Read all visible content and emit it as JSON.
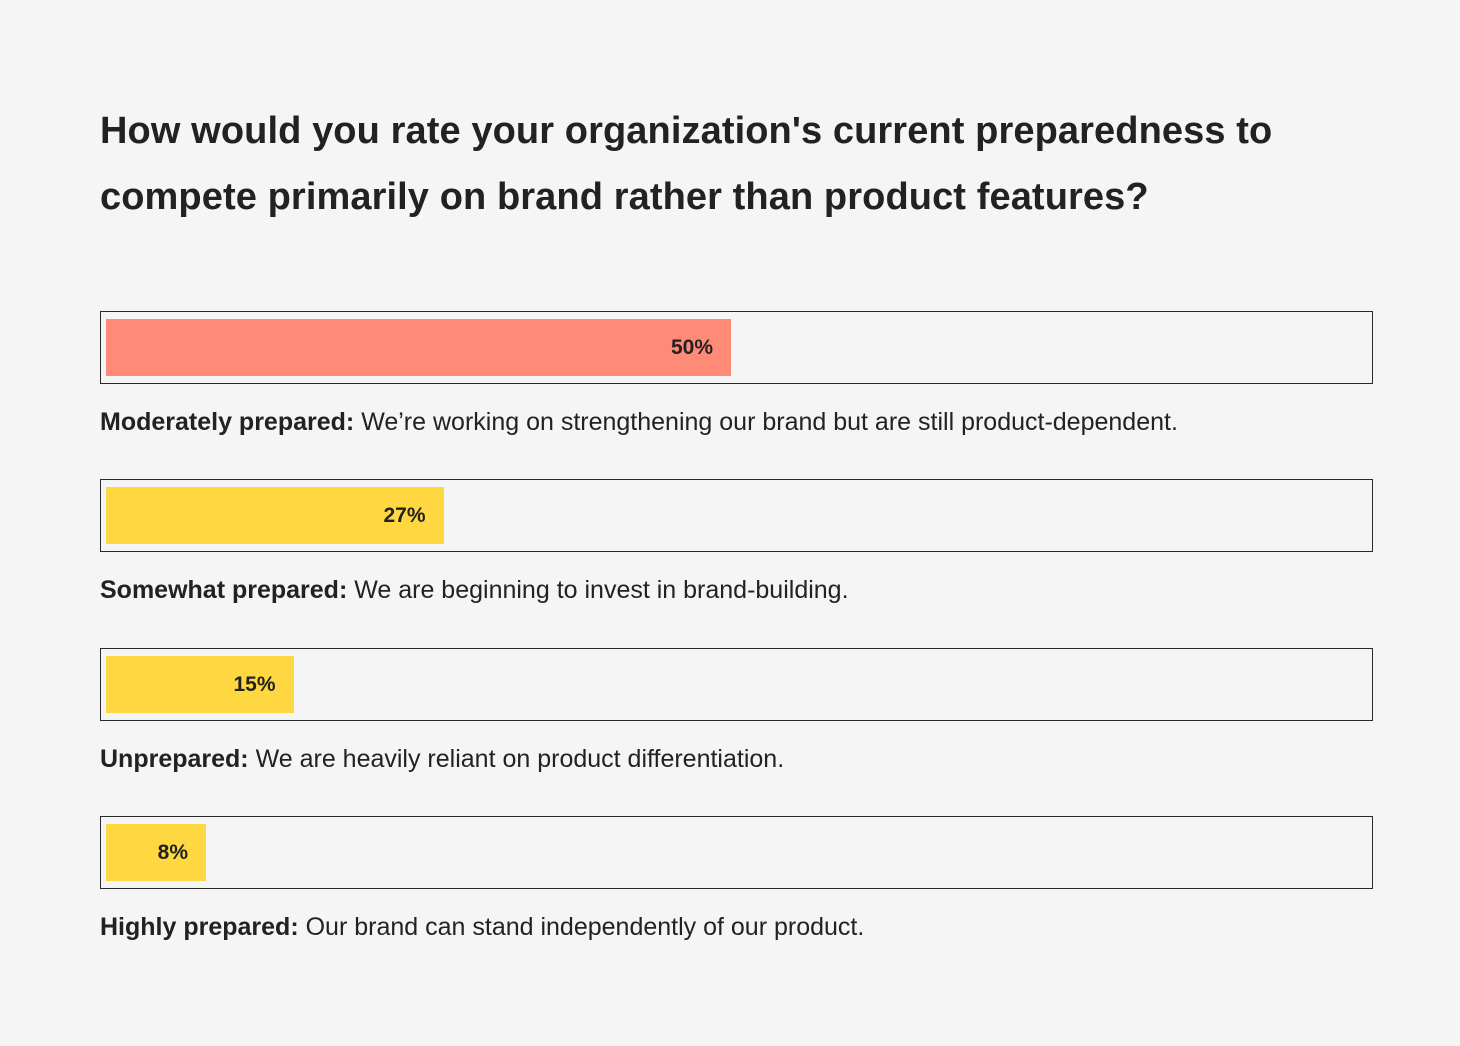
{
  "chart_data": {
    "type": "bar",
    "orientation": "horizontal",
    "title": "How would you rate your organization's current preparedness to compete primarily on brand rather than product features?",
    "xlim": [
      0,
      100
    ],
    "grid": false,
    "categories": [
      "Moderately prepared",
      "Somewhat prepared",
      "Unprepared",
      "Highly prepared"
    ],
    "values": [
      50,
      27,
      15,
      8
    ],
    "value_labels": [
      "50%",
      "27%",
      "15%",
      "8%"
    ],
    "bars": [
      {
        "label": "Moderately prepared:",
        "description": "We’re working on strengthening our brand but are still product-dependent.",
        "value": 50,
        "value_label": "50%",
        "color": "#ff8a78"
      },
      {
        "label": "Somewhat prepared:",
        "description": "We are beginning to invest in brand-building.",
        "value": 27,
        "value_label": "27%",
        "color": "#ffd740"
      },
      {
        "label": "Unprepared:",
        "description": "We are heavily reliant on product differentiation.",
        "value": 15,
        "value_label": "15%",
        "color": "#ffd740"
      },
      {
        "label": "Highly prepared:",
        "description": "Our brand can stand independently of our product.",
        "value": 8,
        "value_label": "8%",
        "color": "#ffd740"
      }
    ]
  }
}
